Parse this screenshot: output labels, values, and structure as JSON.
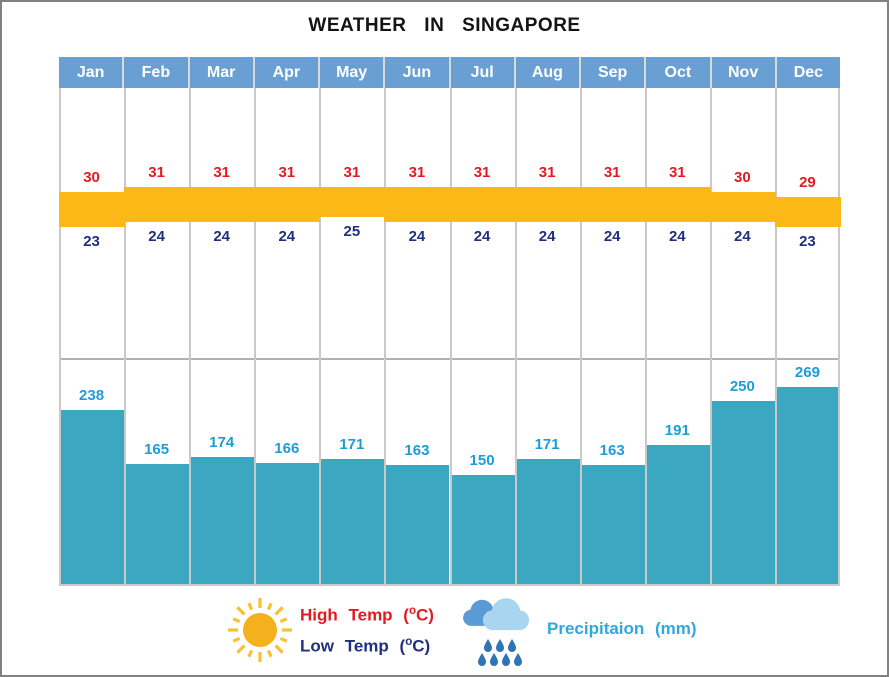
{
  "title": "WEATHER IN SINGAPORE",
  "chart_data": {
    "type": "bar",
    "title": "WEATHER IN SINGAPORE",
    "categories": [
      "Jan",
      "Feb",
      "Mar",
      "Apr",
      "May",
      "Jun",
      "Jul",
      "Aug",
      "Sep",
      "Oct",
      "Nov",
      "Dec"
    ],
    "series": [
      {
        "name": "High Temp (°C)",
        "values": [
          30,
          31,
          31,
          31,
          31,
          31,
          31,
          31,
          31,
          31,
          30,
          29
        ]
      },
      {
        "name": "Low Temp (°C)",
        "values": [
          23,
          24,
          24,
          24,
          25,
          24,
          24,
          24,
          24,
          24,
          24,
          23
        ]
      },
      {
        "name": "Precipitaion (mm)",
        "values": [
          238,
          165,
          174,
          166,
          171,
          163,
          150,
          171,
          163,
          191,
          250,
          269
        ]
      }
    ],
    "legend_position": "bottom",
    "grid": true,
    "temp_axis_note": "orange band spans low-to-high temp per month",
    "precip_axis_note": "bars rise from table bottom, proportional to mm"
  },
  "legend": {
    "high_prefix": "High Temp (",
    "high_sup": "o",
    "high_suffix": "C)",
    "low_prefix": "Low Temp (",
    "low_sup": "o",
    "low_suffix": "C)",
    "precip_label": "Precipitaion (mm)"
  },
  "colors": {
    "header_bg": "#6a9fd4",
    "header_text": "#ffffff",
    "band_orange": "#fcb817",
    "high_text": "#e21b22",
    "low_text": "#20307e",
    "bar_teal": "#3ba7c0",
    "precip_text": "#1e9cd8",
    "grid_line": "#c9c9c9",
    "sun_core": "#f4b01d",
    "sun_rays": "#f8c132",
    "cloud_back": "#5b9bd5",
    "cloud_front": "#a9d5f0",
    "rain_drop": "#2e75b6"
  }
}
